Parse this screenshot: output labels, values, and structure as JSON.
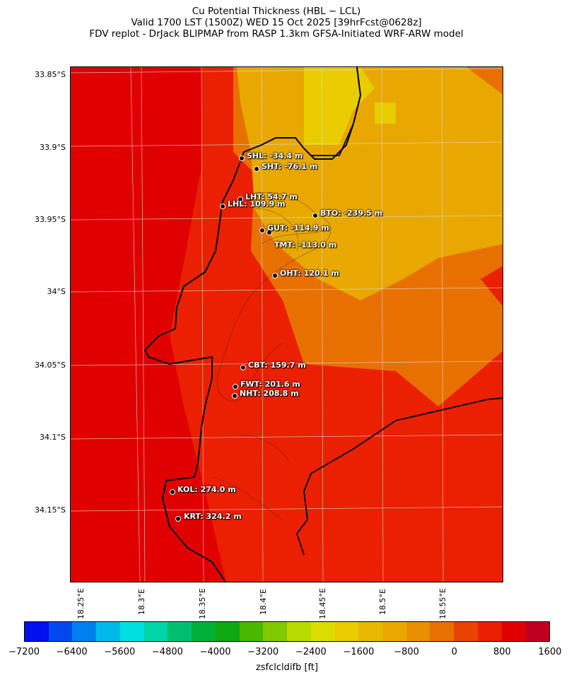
{
  "title": [
    "Cu Potential Thickness (HBL − LCL)",
    "Valid 1700 LST (1500Z) WED 15 Oct 2025 [39hrFcst@0628z]",
    "FDV replot - DrJack BLIPMAP from RASP 1.3km GFSA-Initiated WRF-ARW model"
  ],
  "lat_labels": [
    "33.85°S",
    "33.9°S",
    "33.95°S",
    "34°S",
    "34.05°S",
    "34.1°S",
    "34.15°S"
  ],
  "lon_labels": [
    "18.25°E",
    "18.3°E",
    "18.35°E",
    "18.4°E",
    "18.45°E",
    "18.5°E",
    "18.55°E"
  ],
  "stations": [
    {
      "name": "SHL",
      "label": "SHL: -34.4 m"
    },
    {
      "name": "SHT",
      "label": "SHT: -76.1 m"
    },
    {
      "name": "LHT",
      "label": "LHT: 54.7 m"
    },
    {
      "name": "LHL",
      "label": "LHL: 109.9 m"
    },
    {
      "name": "BTO",
      "label": "BTO: -239.5 m"
    },
    {
      "name": "GUT",
      "label": "GUT: -114.9 m"
    },
    {
      "name": "TMT",
      "label": "TMT: -113.0 m"
    },
    {
      "name": "OHT",
      "label": "OHT: 120.1 m"
    },
    {
      "name": "CBT",
      "label": "CBT: 159.7 m"
    },
    {
      "name": "FWT",
      "label": "FWT: 201.6 m"
    },
    {
      "name": "NHT",
      "label": "NHT: 208.8 m"
    },
    {
      "name": "KOL",
      "label": "KOL: 274.0 m"
    },
    {
      "name": "KRT",
      "label": "KRT: 324.2 m"
    }
  ],
  "colorbar": {
    "label": "zsfclcldifb [ft]",
    "ticks": [
      "−7200",
      "−6400",
      "−5600",
      "−4800",
      "−4000",
      "−3200",
      "−2400",
      "−1600",
      "−800",
      "0",
      "800",
      "1600"
    ],
    "range": [
      -7200,
      1600
    ],
    "step": 400,
    "colors": [
      "#0010ee",
      "#0048ee",
      "#0080ee",
      "#00b8ea",
      "#00e0e0",
      "#00d4a8",
      "#00c070",
      "#00b038",
      "#10a810",
      "#48b800",
      "#80c800",
      "#b8dc00",
      "#dcdc00",
      "#e8cc00",
      "#e8b800",
      "#e8a800",
      "#e89000",
      "#e87000",
      "#e84400",
      "#ea2000",
      "#e00000",
      "#c00020"
    ]
  }
}
